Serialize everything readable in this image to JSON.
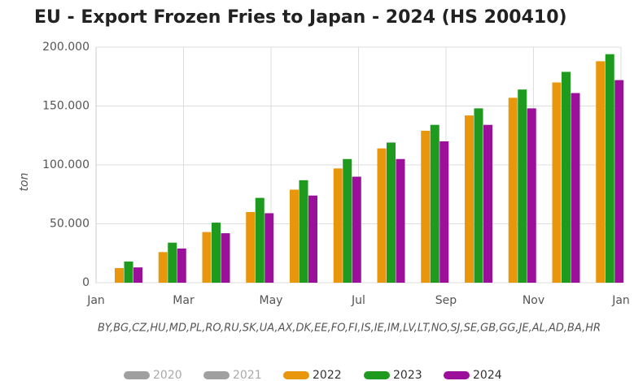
{
  "chart_data": {
    "type": "bar",
    "title": "EU - Export Frozen Fries to Japan - 2024 (HS 200410)",
    "y_label": "ton",
    "note": "BY,BG,CZ,HU,MD,PL,RO,RU,SK,UA,AX,DK,EE,FO,FI,IS,IE,IM,LV,LT,NO,SJ,SE,GB,GG,JE,AL,AD,BA,HR",
    "xticks": [
      "Jan",
      "Mar",
      "May",
      "Jul",
      "Sep",
      "Nov",
      "Jan"
    ],
    "ylim": [
      0,
      200000
    ],
    "yticks": [
      0,
      {
        "value": 50000,
        "label": "50.000"
      },
      {
        "value": 100000,
        "label": "100.000"
      },
      {
        "value": 150000,
        "label": "150.000"
      },
      {
        "value": 200000,
        "label": "200.000"
      }
    ],
    "grid": true,
    "series": [
      {
        "name": "2020",
        "color": "#a0a0a0",
        "hidden": true,
        "values": [
          null,
          null,
          null,
          null,
          null,
          null,
          null,
          null,
          null,
          null,
          null,
          null
        ]
      },
      {
        "name": "2021",
        "color": "#a0a0a0",
        "hidden": true,
        "values": [
          null,
          null,
          null,
          null,
          null,
          null,
          null,
          null,
          null,
          null,
          null,
          null
        ]
      },
      {
        "name": "2022",
        "color": "#e8960c",
        "values": [
          12400,
          26000,
          43000,
          60000,
          79000,
          97000,
          114000,
          129000,
          142000,
          157000,
          170000,
          188000
        ]
      },
      {
        "name": "2023",
        "color": "#1e9a1e",
        "values": [
          18000,
          34000,
          51000,
          72000,
          87000,
          105000,
          119000,
          134000,
          148000,
          164000,
          179000,
          194000
        ]
      },
      {
        "name": "2024",
        "color": "#9b0f9b",
        "values": [
          13000,
          29000,
          42000,
          59000,
          74000,
          90000,
          105000,
          120000,
          134000,
          148000,
          161000,
          172000
        ]
      }
    ]
  }
}
